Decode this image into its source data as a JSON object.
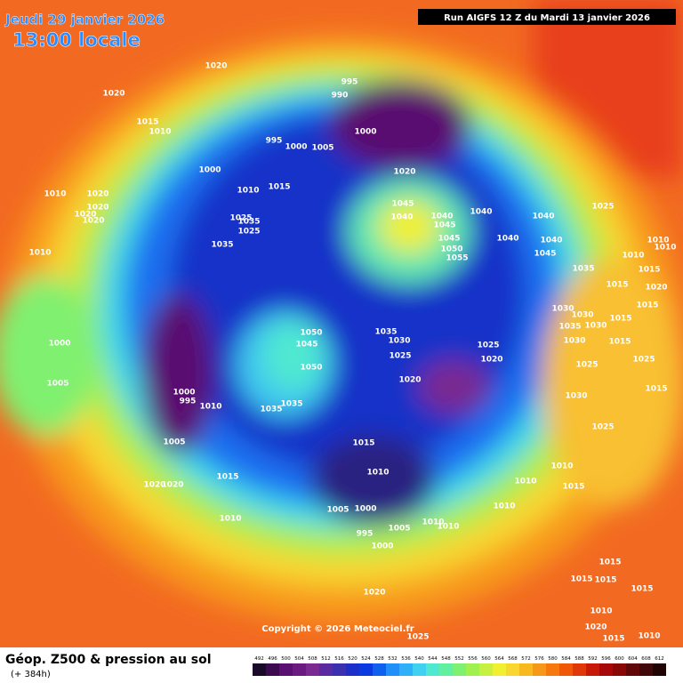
{
  "header": {
    "date": "Jeudi 29 janvier 2026",
    "time": "13:00 locale",
    "run": "Run AIGFS 12 Z du Mardi 13 janvier 2026"
  },
  "map": {
    "copyright": "Copyright © 2026 Meteociel.fr",
    "pressure_labels": [
      "1020",
      "1020",
      "995",
      "990",
      "1015",
      "1010",
      "995",
      "1000",
      "1005",
      "1000",
      "1000",
      "1020",
      "1015",
      "1010",
      "1010",
      "1020",
      "1020",
      "1020",
      "1020",
      "1010",
      "1025",
      "1035",
      "1025",
      "1035",
      "1045",
      "1040",
      "1040",
      "1045",
      "1045",
      "1050",
      "1055",
      "1040",
      "1040",
      "1040",
      "1040",
      "1045",
      "1025",
      "1035",
      "1015",
      "1010",
      "1010",
      "1010",
      "1015",
      "1020",
      "1015",
      "1030",
      "1030",
      "1035",
      "1030",
      "1030",
      "1015",
      "1015",
      "1025",
      "1025",
      "1015",
      "1030",
      "1025",
      "1010",
      "1015",
      "1010",
      "1010",
      "1050",
      "1045",
      "1050",
      "1000",
      "1005",
      "1035",
      "1030",
      "1025",
      "1020",
      "1025",
      "1020",
      "1000",
      "995",
      "1010",
      "1035",
      "1035",
      "1005",
      "1015",
      "1010",
      "1015",
      "1020",
      "1020",
      "1010",
      "1005",
      "1000",
      "995",
      "1000",
      "1005",
      "1010",
      "1010",
      "1015",
      "1015",
      "1015",
      "1015",
      "1020",
      "1010",
      "1020",
      "1015",
      "1010",
      "1025"
    ]
  },
  "legend": {
    "title": "Géop. Z500 & pression au sol",
    "subtitle": "(+ 384h)",
    "levels": [
      492,
      496,
      500,
      504,
      508,
      512,
      516,
      520,
      524,
      528,
      532,
      536,
      540,
      544,
      548,
      552,
      556,
      560,
      564,
      568,
      572,
      576,
      580,
      584,
      588,
      592,
      596,
      600,
      604,
      608,
      612
    ],
    "colors": [
      "#1a0a2a",
      "#3c0a50",
      "#5a1070",
      "#6a1a80",
      "#7a2a90",
      "#5a2aa0",
      "#3a30b0",
      "#1c2fc8",
      "#0a3ae0",
      "#1060f0",
      "#2090f8",
      "#30b0f8",
      "#40d0f0",
      "#50e8d0",
      "#60f0a0",
      "#80f070",
      "#a0f050",
      "#c8f040",
      "#f0f030",
      "#f8d830",
      "#f8b820",
      "#f89818",
      "#f87810",
      "#f05808",
      "#e03808",
      "#c81808",
      "#a80808",
      "#880808",
      "#600808",
      "#400808",
      "#200404"
    ]
  }
}
